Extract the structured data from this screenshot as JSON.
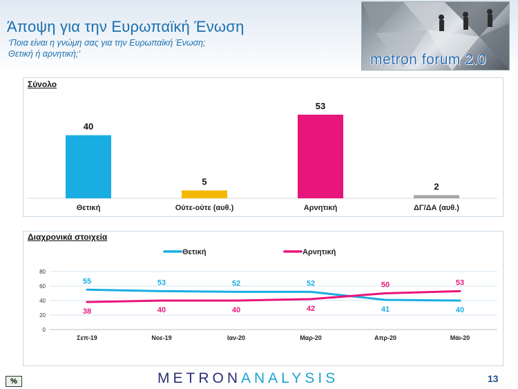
{
  "header": {
    "title": "Άποψη για την Ευρωπαϊκή Ένωση",
    "subtitle": "‘Ποια είναι η γνώμη σας για την Ευρωπαϊκή Ένωση;\nΘετική ή αρνητική;’",
    "logo_text": "metron forum 2.0"
  },
  "panels": {
    "total_label": "Σύνολο",
    "trend_label": "Διαχρονικά στοιχεία"
  },
  "footer": {
    "brand_part1": "METRON",
    "brand_part2": "ANALYSIS",
    "page_number": "13",
    "percent_badge": "%"
  },
  "colors": {
    "positive": "#19ade2",
    "neutral": "#f5b800",
    "negative": "#e8157a",
    "dk": "#a6a6a6",
    "brand_blue": "#1b6fae"
  },
  "chart_data": [
    {
      "type": "bar",
      "title": "Σύνολο",
      "categories": [
        "Θετική",
        "Ούτε-ούτε (αυθ.)",
        "Αρνητική",
        "ΔΓ/ΔΑ (αυθ.)"
      ],
      "values": [
        40,
        5,
        53,
        2
      ],
      "colors": [
        "#19ade2",
        "#f5b800",
        "#e8157a",
        "#a6a6a6"
      ],
      "ylim": [
        0,
        60
      ]
    },
    {
      "type": "line",
      "title": "Διαχρονικά στοιχεία",
      "x": [
        "Σεπ-19",
        "Νοε-19",
        "Ιαν-20",
        "Μαρ-20",
        "Απρ-20",
        "Μάι-20"
      ],
      "series": [
        {
          "name": "Θετική",
          "values": [
            55,
            53,
            52,
            52,
            41,
            40
          ],
          "color": "#19ade2"
        },
        {
          "name": "Αρνητική",
          "values": [
            38,
            40,
            40,
            42,
            50,
            53
          ],
          "color": "#e8157a"
        }
      ],
      "yticks": [
        0,
        20,
        40,
        60,
        80
      ],
      "ylim": [
        0,
        80
      ],
      "grid": true,
      "legend": "top"
    }
  ]
}
